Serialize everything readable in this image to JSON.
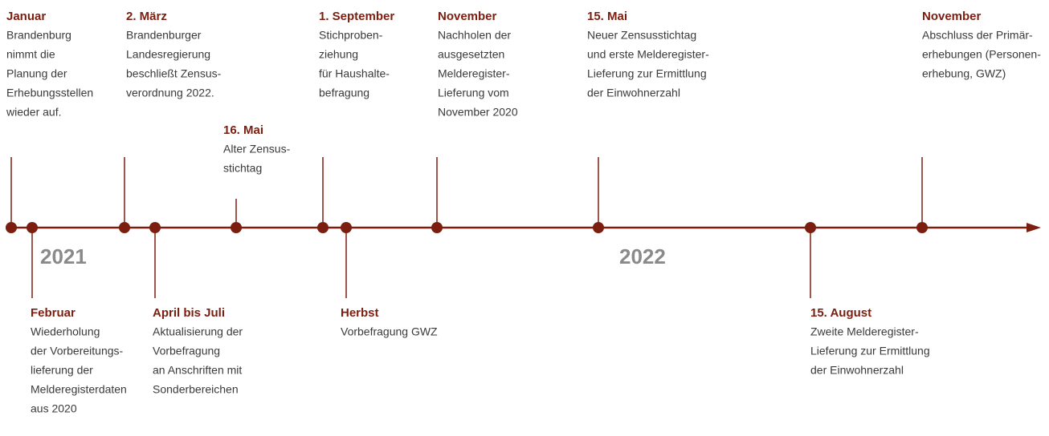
{
  "years": [
    "2021",
    "2022"
  ],
  "events": [
    {
      "title": "Januar",
      "lines": [
        "Brandenburg",
        "nimmt die",
        "Planung der",
        "Erhebungsstellen",
        "wieder auf."
      ]
    },
    {
      "title": "Februar",
      "lines": [
        "Wiederholung",
        "der Vorbereitungs-",
        "lieferung der",
        "Melderegisterdaten",
        "aus 2020"
      ]
    },
    {
      "title": "2. März",
      "lines": [
        "Brandenburger",
        "Landesregierung",
        "beschließt Zensus-",
        "verordnung 2022."
      ]
    },
    {
      "title": "April bis Juli",
      "lines": [
        "Aktualisierung der",
        "Vorbefragung",
        "an Anschriften mit",
        "Sonderbereichen"
      ]
    },
    {
      "title": "16. Mai",
      "lines": [
        "Alter Zensus-",
        "stichtag"
      ]
    },
    {
      "title": "1. September",
      "lines": [
        "Stichproben-",
        "ziehung",
        "für Haushalte-",
        "befragung"
      ]
    },
    {
      "title": "Herbst",
      "lines": [
        "Vorbefragung GWZ"
      ]
    },
    {
      "title": "November",
      "lines": [
        "Nachholen der",
        "ausgesetzten",
        "Melderegister-",
        "Lieferung vom",
        "November 2020"
      ]
    },
    {
      "title": "15. Mai",
      "lines": [
        "Neuer Zensusstichtag",
        "und erste Melderegister-",
        "Lieferung zur Ermittlung",
        "der Einwohnerzahl"
      ]
    },
    {
      "title": "15. August",
      "lines": [
        "Zweite Melderegister-",
        "Lieferung zur Ermittlung",
        "der Einwohnerzahl"
      ]
    },
    {
      "title": "November",
      "lines": [
        "Abschluss der Primär-",
        "erhebungen (Personen-",
        "erhebung, GWZ)"
      ]
    }
  ]
}
